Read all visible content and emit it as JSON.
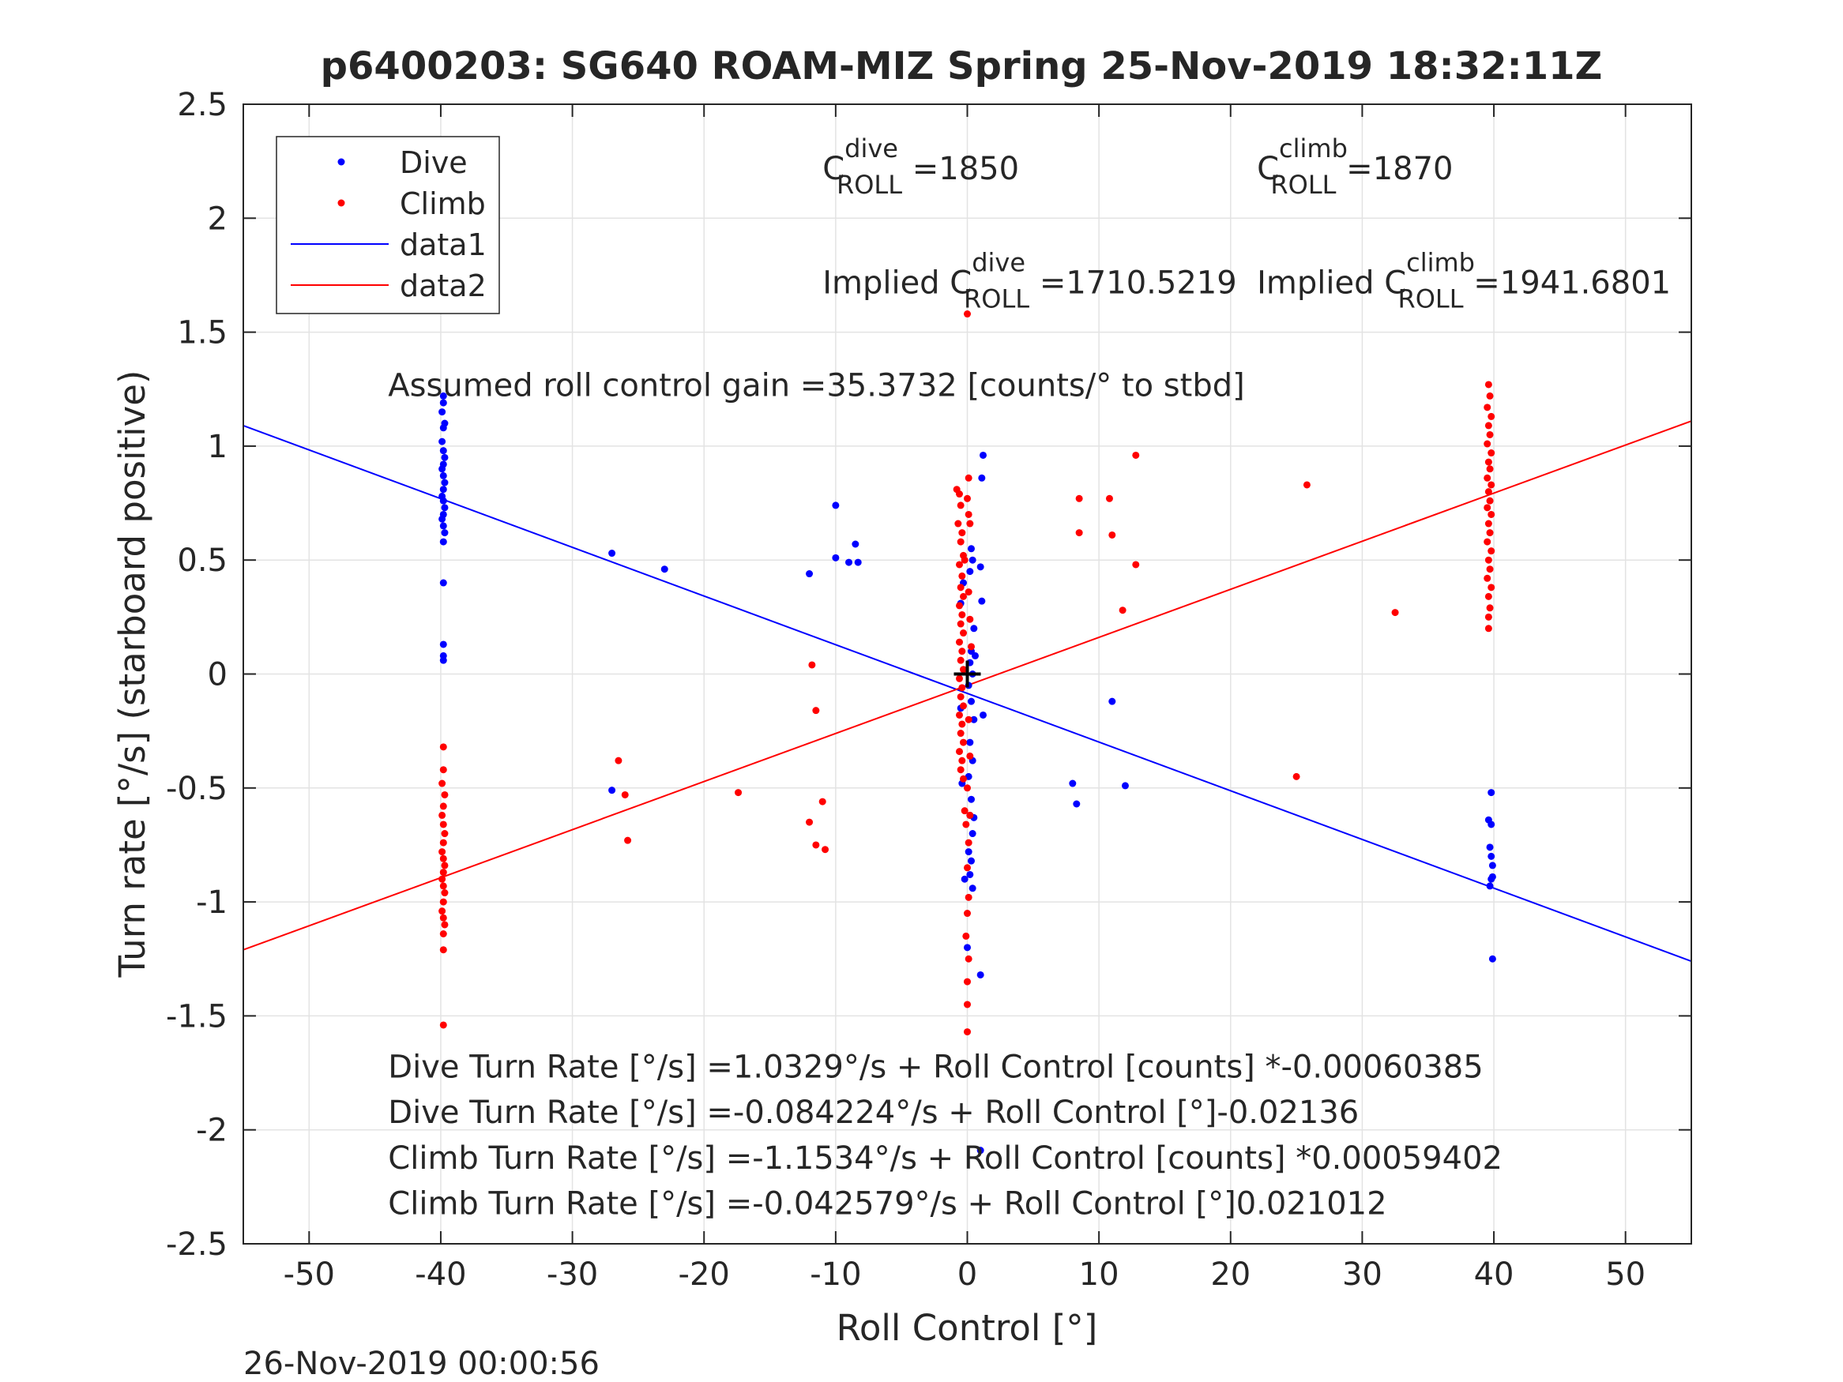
{
  "chart_data": {
    "type": "scatter",
    "title": "p6400203: SG640 ROAM-MIZ Spring 25-Nov-2019 18:32:11Z",
    "xlabel": "Roll Control [°]",
    "ylabel": "Turn rate [°/s] (starboard positive)",
    "xlim": [
      -55,
      55
    ],
    "ylim": [
      -2.5,
      2.5
    ],
    "grid": true,
    "legend_position": "top-left",
    "x_ticks": [
      -50,
      -40,
      -30,
      -20,
      -10,
      0,
      10,
      20,
      30,
      40,
      50
    ],
    "x_tick_labels": [
      "-50",
      "-40",
      "-30",
      "-20",
      "-10",
      "0",
      "10",
      "20",
      "30",
      "40",
      "50"
    ],
    "y_ticks": [
      -2.5,
      -2,
      -1.5,
      -1,
      -0.5,
      0,
      0.5,
      1,
      1.5,
      2,
      2.5
    ],
    "y_tick_labels": [
      "-2.5",
      "-2",
      "-1.5",
      "-1",
      "-0.5",
      "0",
      "0.5",
      "1",
      "1.5",
      "2",
      "2.5"
    ],
    "legend": [
      {
        "label": "Dive",
        "kind": "marker",
        "color": "#0000ff"
      },
      {
        "label": "Climb",
        "kind": "marker",
        "color": "#ff0000"
      },
      {
        "label": "data1",
        "kind": "line",
        "color": "#0000ff"
      },
      {
        "label": "data2",
        "kind": "line",
        "color": "#ff0000"
      }
    ],
    "series": [
      {
        "name": "Dive",
        "color": "#0000ff",
        "points": [
          [
            -39.8,
            1.22
          ],
          [
            -39.8,
            1.19
          ],
          [
            -39.9,
            1.15
          ],
          [
            -39.7,
            1.1
          ],
          [
            -39.8,
            1.08
          ],
          [
            -39.9,
            1.02
          ],
          [
            -39.8,
            0.98
          ],
          [
            -39.7,
            0.95
          ],
          [
            -39.8,
            0.92
          ],
          [
            -39.9,
            0.9
          ],
          [
            -39.8,
            0.87
          ],
          [
            -39.7,
            0.84
          ],
          [
            -39.8,
            0.81
          ],
          [
            -39.9,
            0.78
          ],
          [
            -39.8,
            0.76
          ],
          [
            -39.7,
            0.73
          ],
          [
            -39.8,
            0.7
          ],
          [
            -39.9,
            0.68
          ],
          [
            -39.8,
            0.65
          ],
          [
            -39.7,
            0.62
          ],
          [
            -39.8,
            0.58
          ],
          [
            -39.8,
            0.4
          ],
          [
            -39.8,
            0.13
          ],
          [
            -39.8,
            0.08
          ],
          [
            -39.8,
            0.06
          ],
          [
            -27,
            0.53
          ],
          [
            -23,
            0.46
          ],
          [
            -12,
            0.44
          ],
          [
            -10,
            0.74
          ],
          [
            -10,
            0.51
          ],
          [
            -9,
            0.49
          ],
          [
            -8.5,
            0.57
          ],
          [
            -8.3,
            0.49
          ],
          [
            -0.5,
            0.31
          ],
          [
            -0.3,
            0.4
          ],
          [
            0.2,
            0.45
          ],
          [
            0.3,
            0.55
          ],
          [
            0.4,
            0.5
          ],
          [
            0.5,
            0.2
          ],
          [
            0.3,
            0.1
          ],
          [
            0.2,
            0.05
          ],
          [
            0.4,
            0.0
          ],
          [
            0.1,
            -0.05
          ],
          [
            0.3,
            -0.12
          ],
          [
            0.5,
            -0.2
          ],
          [
            0.2,
            -0.3
          ],
          [
            0.4,
            -0.38
          ],
          [
            0.1,
            -0.45
          ],
          [
            0.3,
            -0.55
          ],
          [
            0.2,
            -0.62
          ],
          [
            0.4,
            -0.7
          ],
          [
            0.1,
            -0.78
          ],
          [
            0.3,
            -0.82
          ],
          [
            0.2,
            -0.88
          ],
          [
            0.4,
            -0.94
          ],
          [
            -0.2,
            -0.9
          ],
          [
            0.5,
            -0.63
          ],
          [
            -0.4,
            -0.48
          ],
          [
            -0.5,
            -0.15
          ],
          [
            0.6,
            0.08
          ],
          [
            1.2,
            0.96
          ],
          [
            1.1,
            0.86
          ],
          [
            1.0,
            0.47
          ],
          [
            1.1,
            0.32
          ],
          [
            1.2,
            -0.18
          ],
          [
            0.0,
            -1.2
          ],
          [
            1.0,
            -1.32
          ],
          [
            1.0,
            -2.09
          ],
          [
            11,
            -0.12
          ],
          [
            12,
            -0.49
          ],
          [
            8,
            -0.48
          ],
          [
            8.3,
            -0.57
          ],
          [
            -27,
            -0.51
          ],
          [
            39.8,
            -0.52
          ],
          [
            39.6,
            -0.64
          ],
          [
            39.8,
            -0.66
          ],
          [
            39.7,
            -0.76
          ],
          [
            39.8,
            -0.8
          ],
          [
            39.9,
            -0.84
          ],
          [
            39.8,
            -0.9
          ],
          [
            39.7,
            -0.93
          ],
          [
            39.9,
            -0.89
          ],
          [
            39.9,
            -1.25
          ]
        ]
      },
      {
        "name": "Climb",
        "color": "#ff0000",
        "points": [
          [
            -39.8,
            -0.32
          ],
          [
            -39.8,
            -0.42
          ],
          [
            -39.9,
            -0.48
          ],
          [
            -39.7,
            -0.53
          ],
          [
            -39.8,
            -0.58
          ],
          [
            -39.9,
            -0.62
          ],
          [
            -39.8,
            -0.66
          ],
          [
            -39.7,
            -0.7
          ],
          [
            -39.8,
            -0.74
          ],
          [
            -39.9,
            -0.78
          ],
          [
            -39.8,
            -0.81
          ],
          [
            -39.7,
            -0.84
          ],
          [
            -39.8,
            -0.87
          ],
          [
            -39.9,
            -0.9
          ],
          [
            -39.8,
            -0.93
          ],
          [
            -39.7,
            -0.96
          ],
          [
            -39.8,
            -1.0
          ],
          [
            -39.9,
            -1.04
          ],
          [
            -39.8,
            -1.07
          ],
          [
            -39.7,
            -1.1
          ],
          [
            -39.8,
            -1.14
          ],
          [
            -39.8,
            -1.21
          ],
          [
            -39.8,
            -1.54
          ],
          [
            -26.5,
            -0.38
          ],
          [
            -26,
            -0.53
          ],
          [
            -25.8,
            -0.73
          ],
          [
            -17.4,
            -0.52
          ],
          [
            -11.8,
            0.04
          ],
          [
            -11.5,
            -0.16
          ],
          [
            -12,
            -0.65
          ],
          [
            -11,
            -0.56
          ],
          [
            -11.5,
            -0.75
          ],
          [
            -10.8,
            -0.77
          ],
          [
            -0.8,
            0.81
          ],
          [
            -0.6,
            0.79
          ],
          [
            -0.5,
            0.74
          ],
          [
            -0.7,
            0.66
          ],
          [
            -0.4,
            0.62
          ],
          [
            -0.5,
            0.58
          ],
          [
            -0.3,
            0.52
          ],
          [
            -0.6,
            0.48
          ],
          [
            -0.4,
            0.43
          ],
          [
            -0.5,
            0.38
          ],
          [
            -0.3,
            0.34
          ],
          [
            -0.6,
            0.3
          ],
          [
            -0.4,
            0.26
          ],
          [
            -0.5,
            0.22
          ],
          [
            -0.3,
            0.18
          ],
          [
            -0.6,
            0.14
          ],
          [
            -0.4,
            0.1
          ],
          [
            -0.5,
            0.06
          ],
          [
            -0.3,
            0.02
          ],
          [
            -0.6,
            -0.02
          ],
          [
            -0.4,
            -0.06
          ],
          [
            -0.5,
            -0.1
          ],
          [
            -0.3,
            -0.14
          ],
          [
            -0.6,
            -0.18
          ],
          [
            -0.4,
            -0.22
          ],
          [
            -0.5,
            -0.26
          ],
          [
            -0.3,
            -0.3
          ],
          [
            -0.6,
            -0.34
          ],
          [
            -0.4,
            -0.38
          ],
          [
            -0.5,
            -0.42
          ],
          [
            -0.3,
            -0.46
          ],
          [
            0.0,
            -0.5
          ],
          [
            0.1,
            0.86
          ],
          [
            0.0,
            0.77
          ],
          [
            0.1,
            0.7
          ],
          [
            0.2,
            0.66
          ],
          [
            0.0,
            -0.85
          ],
          [
            0.1,
            -0.98
          ],
          [
            0.0,
            -1.05
          ],
          [
            -0.1,
            -1.15
          ],
          [
            0.1,
            -1.25
          ],
          [
            0.0,
            -1.35
          ],
          [
            0.0,
            -1.45
          ],
          [
            0.0,
            -1.57
          ],
          [
            0.0,
            1.58
          ],
          [
            -0.2,
            0.5
          ],
          [
            0.1,
            0.36
          ],
          [
            0.2,
            0.24
          ],
          [
            0.3,
            0.12
          ],
          [
            0.1,
            -0.2
          ],
          [
            0.2,
            -0.36
          ],
          [
            -0.2,
            -0.6
          ],
          [
            -0.1,
            -0.66
          ],
          [
            0.1,
            -0.74
          ],
          [
            0.2,
            -0.62
          ],
          [
            8.5,
            0.77
          ],
          [
            8.5,
            0.62
          ],
          [
            10.8,
            0.77
          ],
          [
            11,
            0.61
          ],
          [
            11.8,
            0.28
          ],
          [
            12.8,
            0.96
          ],
          [
            12.8,
            0.48
          ],
          [
            25,
            -0.45
          ],
          [
            25.8,
            0.83
          ],
          [
            32.5,
            0.27
          ],
          [
            39.6,
            1.27
          ],
          [
            39.7,
            1.22
          ],
          [
            39.5,
            1.17
          ],
          [
            39.8,
            1.13
          ],
          [
            39.6,
            1.09
          ],
          [
            39.7,
            1.05
          ],
          [
            39.5,
            1.01
          ],
          [
            39.8,
            0.97
          ],
          [
            39.6,
            0.93
          ],
          [
            39.7,
            0.9
          ],
          [
            39.5,
            0.86
          ],
          [
            39.8,
            0.83
          ],
          [
            39.6,
            0.8
          ],
          [
            39.7,
            0.76
          ],
          [
            39.5,
            0.73
          ],
          [
            39.8,
            0.7
          ],
          [
            39.6,
            0.66
          ],
          [
            39.7,
            0.62
          ],
          [
            39.5,
            0.58
          ],
          [
            39.8,
            0.54
          ],
          [
            39.6,
            0.5
          ],
          [
            39.7,
            0.46
          ],
          [
            39.5,
            0.42
          ],
          [
            39.8,
            0.38
          ],
          [
            39.6,
            0.34
          ],
          [
            39.7,
            0.29
          ],
          [
            39.6,
            0.25
          ],
          [
            39.6,
            0.2
          ]
        ]
      },
      {
        "name": "data1",
        "color": "#0000ff",
        "kind": "line",
        "points": [
          [
            -55,
            1.09
          ],
          [
            55,
            -1.26
          ]
        ]
      },
      {
        "name": "data2",
        "color": "#ff0000",
        "kind": "line",
        "points": [
          [
            -55,
            -1.21
          ],
          [
            55,
            1.11
          ]
        ]
      }
    ],
    "annotations": [
      {
        "x": -44,
        "y": 1.22,
        "text": "Assumed roll control gain =35.3732 [counts/° to stbd]"
      },
      {
        "x": -44,
        "y": -1.77,
        "text": "Dive Turn Rate [°/s] =1.0329°/s + Roll Control [counts] *-0.00060385"
      },
      {
        "x": -44,
        "y": -1.97,
        "text": "Dive Turn Rate [°/s] =-0.084224°/s + Roll Control [°]-0.02136"
      },
      {
        "x": -44,
        "y": -2.17,
        "text": "Climb Turn Rate [°/s] =-1.1534°/s + Roll Control [counts] *0.00059402"
      },
      {
        "x": -44,
        "y": -2.37,
        "text": "Climb Turn Rate [°/s] =-0.042579°/s + Roll Control [°]0.021012"
      }
    ],
    "coef_labels": [
      {
        "x": -11,
        "y": 2.17,
        "prefix": "C",
        "sup": "dive",
        "sub": "ROLL",
        "value": " =1850"
      },
      {
        "x": 22,
        "y": 2.17,
        "prefix": "C",
        "sup": "climb",
        "sub": "ROLL",
        "value": " =1870"
      },
      {
        "x": -11,
        "y": 1.67,
        "prefix": "Implied C",
        "sup": "dive",
        "sub": "ROLL",
        "value": " =1710.5219"
      },
      {
        "x": 22,
        "y": 1.67,
        "prefix": "Implied C",
        "sup": "climb",
        "sub": "ROLL",
        "value": " =1941.6801"
      }
    ],
    "center_marker": {
      "x": 0,
      "y": 0
    }
  },
  "footer": {
    "timestamp": "26-Nov-2019 00:00:56"
  }
}
